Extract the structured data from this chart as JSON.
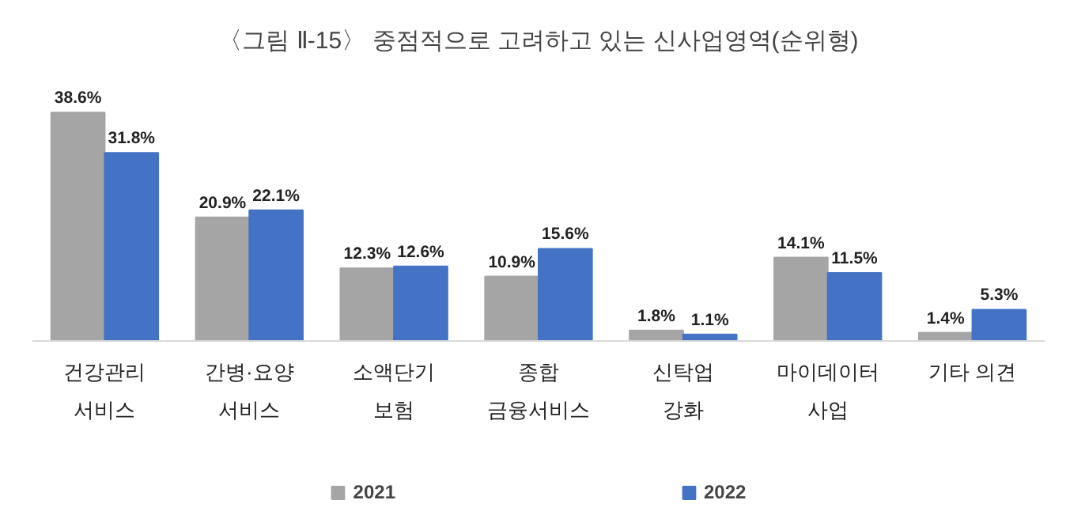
{
  "chart_data": {
    "type": "bar",
    "title": "〈그림 Ⅱ-15〉 중점적으로 고려하고 있는 신사업영역(순위형)",
    "categories": [
      "건강관리\n서비스",
      "간병·요양\n서비스",
      "소액단기\n보험",
      "종합\n금융서비스",
      "신탁업\n강화",
      "마이데이터\n사업",
      "기타 의견"
    ],
    "series": [
      {
        "name": "2021",
        "color": "#a5a5a5",
        "values": [
          38.6,
          20.9,
          12.3,
          10.9,
          1.8,
          14.1,
          1.4
        ],
        "value_labels": [
          "38.6%",
          "20.9%",
          "12.3%",
          "10.9%",
          "1.8%",
          "14.1%",
          "1.4%"
        ]
      },
      {
        "name": "2022",
        "color": "#4472c4",
        "values": [
          31.8,
          22.1,
          12.6,
          15.6,
          1.1,
          11.5,
          5.3
        ],
        "value_labels": [
          "31.8%",
          "22.1%",
          "12.6%",
          "15.6%",
          "1.1%",
          "11.5%",
          "5.3%"
        ]
      }
    ],
    "legend": "bottom"
  }
}
